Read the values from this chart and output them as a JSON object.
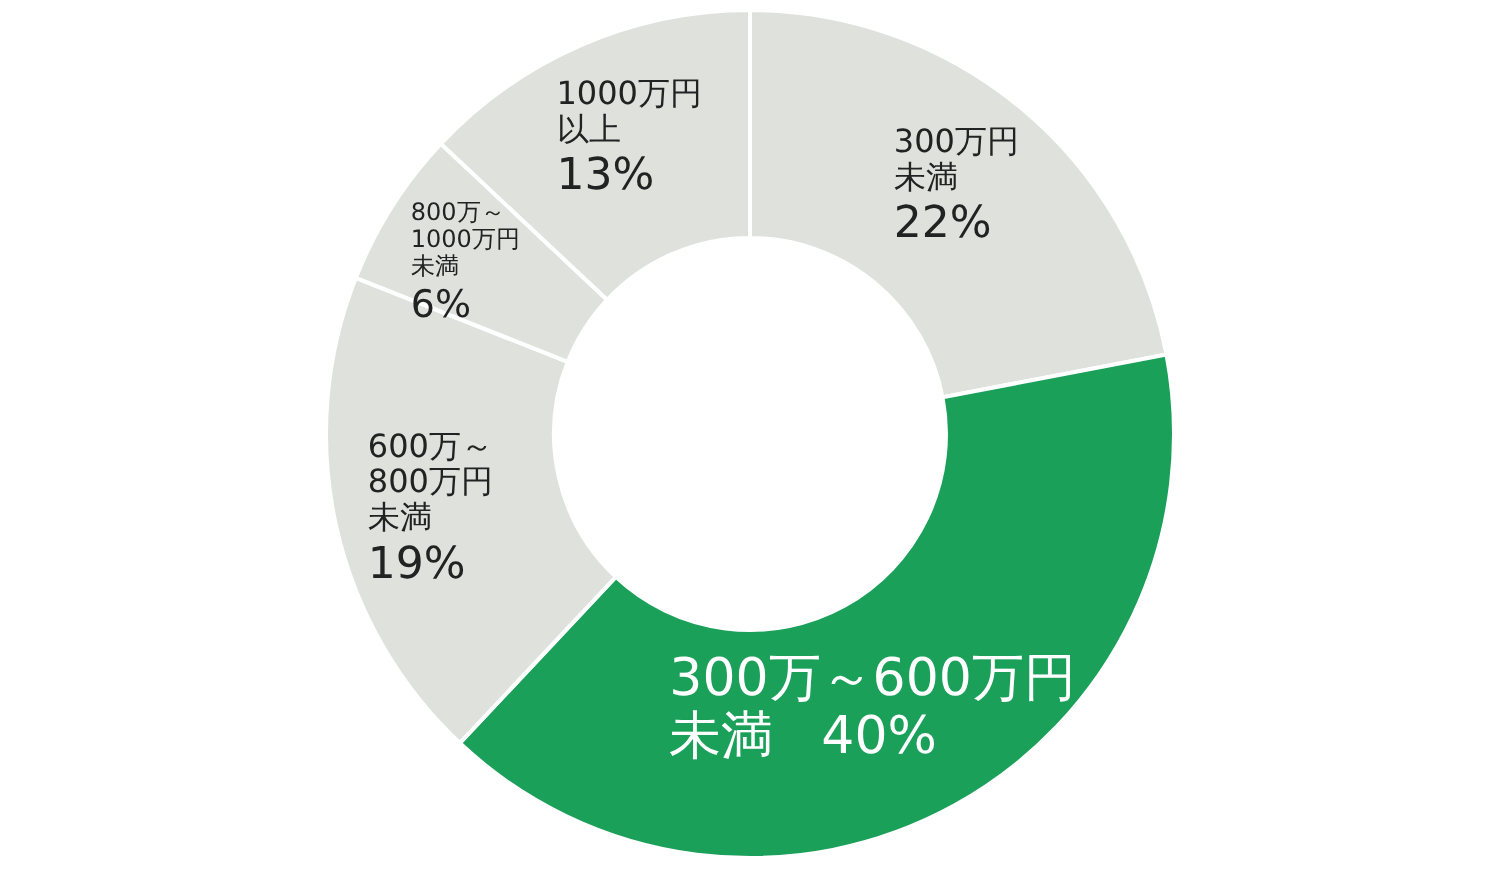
{
  "chart_data": {
    "type": "donut",
    "categories": [
      "300万円未満",
      "300万～600万円未満",
      "600万～800万円未満",
      "800万～1000万円未満",
      "1000万円以上"
    ],
    "values": [
      22,
      40,
      19,
      6,
      13
    ],
    "value_labels": [
      "22%",
      "40%",
      "19%",
      "6%",
      "13%"
    ],
    "colors": [
      "#dfe2dc",
      "#1ba05a",
      "#dfe2dc",
      "#dfe2dc",
      "#dfe2dc"
    ]
  }
}
